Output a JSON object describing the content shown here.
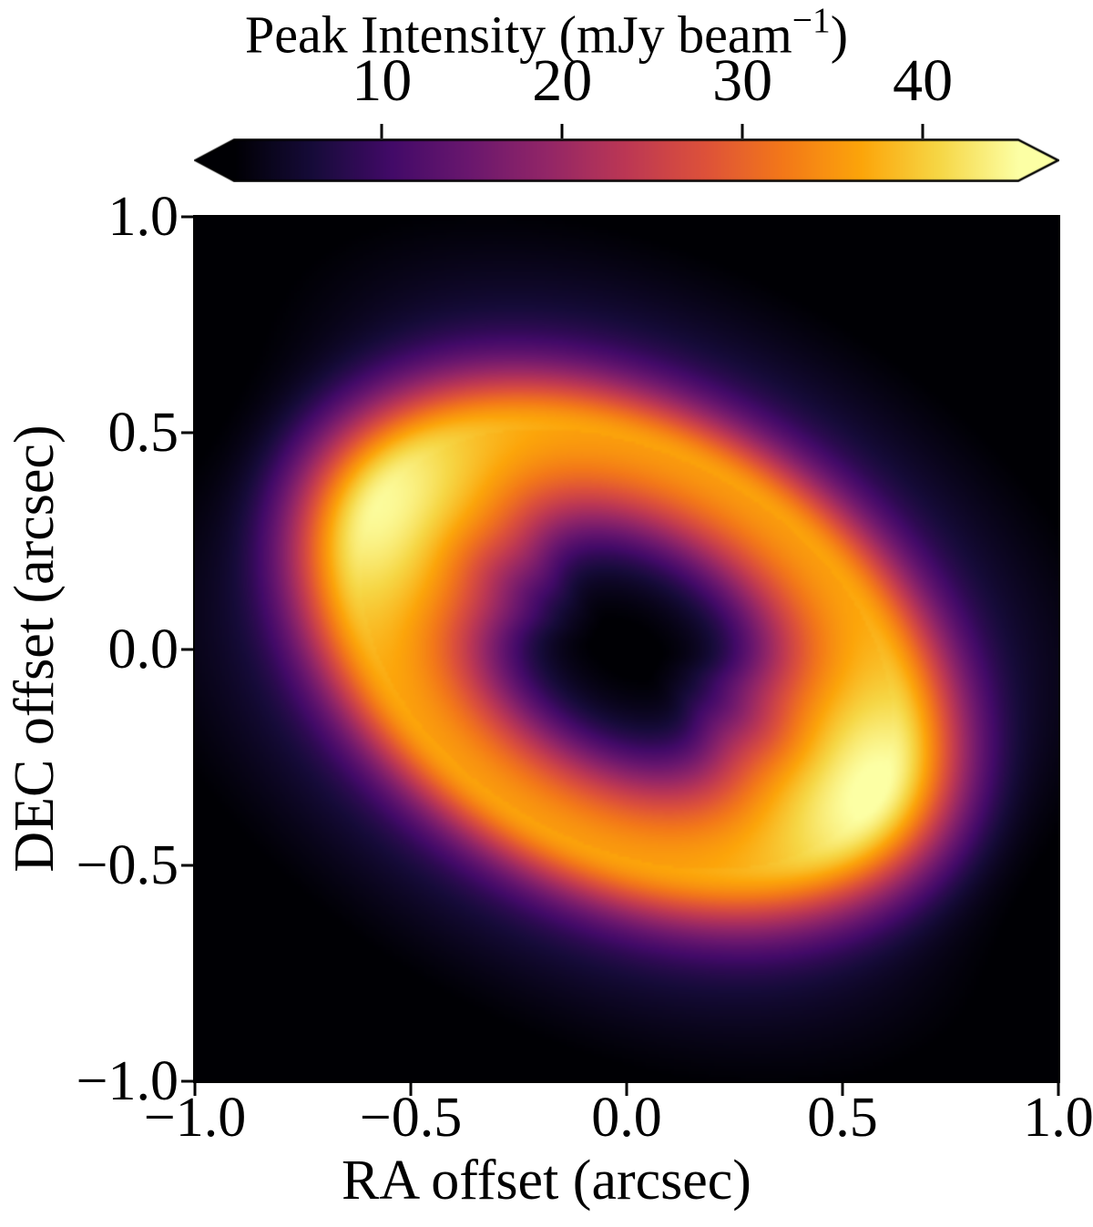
{
  "chart_data": {
    "type": "heatmap",
    "colorbar": {
      "title_main": "Peak Intensity (mJy beam",
      "title_sup": "−1",
      "title_close": ")",
      "tick_labels": [
        "10",
        "20",
        "30",
        "40"
      ],
      "tick_values": [
        10,
        20,
        30,
        40
      ],
      "vmin": 1.8,
      "vmax": 45.3,
      "extend": "both",
      "colormap_name": "inferno",
      "colormap_stops": [
        "#000004",
        "#160b39",
        "#420a68",
        "#6a176e",
        "#932667",
        "#bc3754",
        "#dd513a",
        "#f37819",
        "#fca50a",
        "#f6d746",
        "#fcffa4"
      ]
    },
    "xlabel": "RA offset (arcsec)",
    "ylabel": "DEC offset (arcsec)",
    "xlim": [
      -1.0,
      1.0
    ],
    "ylim": [
      -1.0,
      1.0
    ],
    "xtick_labels": [
      "−1.0",
      "−0.5",
      "0.0",
      "0.5",
      "1.0"
    ],
    "xtick_values": [
      -1.0,
      -0.5,
      0.0,
      0.5,
      1.0
    ],
    "ytick_labels": [
      "1.0",
      "0.5",
      "0.0",
      "−0.5",
      "−1.0"
    ],
    "ytick_values": [
      1.0,
      0.5,
      0.0,
      -0.5,
      -1.0
    ],
    "model": {
      "description": "Inclined ring (protoplanetary disk) with limb-brightened ansae, inner shoulder and minor-axis skirts",
      "theta_deg": -30,
      "axis_ratio": 0.68,
      "r0": 0.66,
      "env_min_mjy": 36.3,
      "ansa_boost_mjy": 9.2,
      "ansa_sigma_deg": 23,
      "asymmetry": 0.06,
      "sigma_out": 0.13,
      "sigma_out_ansa_extra": 0.01,
      "sigma_in": 0.4,
      "sigma_in_ansa": 0.28,
      "edge_r": 0.38,
      "edge_r_ansa": 0.15,
      "edge_width": 0.08,
      "skirt_amp_mjy": 10,
      "skirt_ansa_suppression": 0.75,
      "skirt_sigma_out": 0.36,
      "skirt_sigma_in": 0.3,
      "ansae": [
        {
          "x": -0.57,
          "y": 0.33,
          "peak_mjy": 45.0
        },
        {
          "x": 0.57,
          "y": -0.33,
          "peak_mjy": 46.0
        }
      ]
    }
  },
  "colors": {
    "background": "#ffffff",
    "text": "#000000"
  }
}
